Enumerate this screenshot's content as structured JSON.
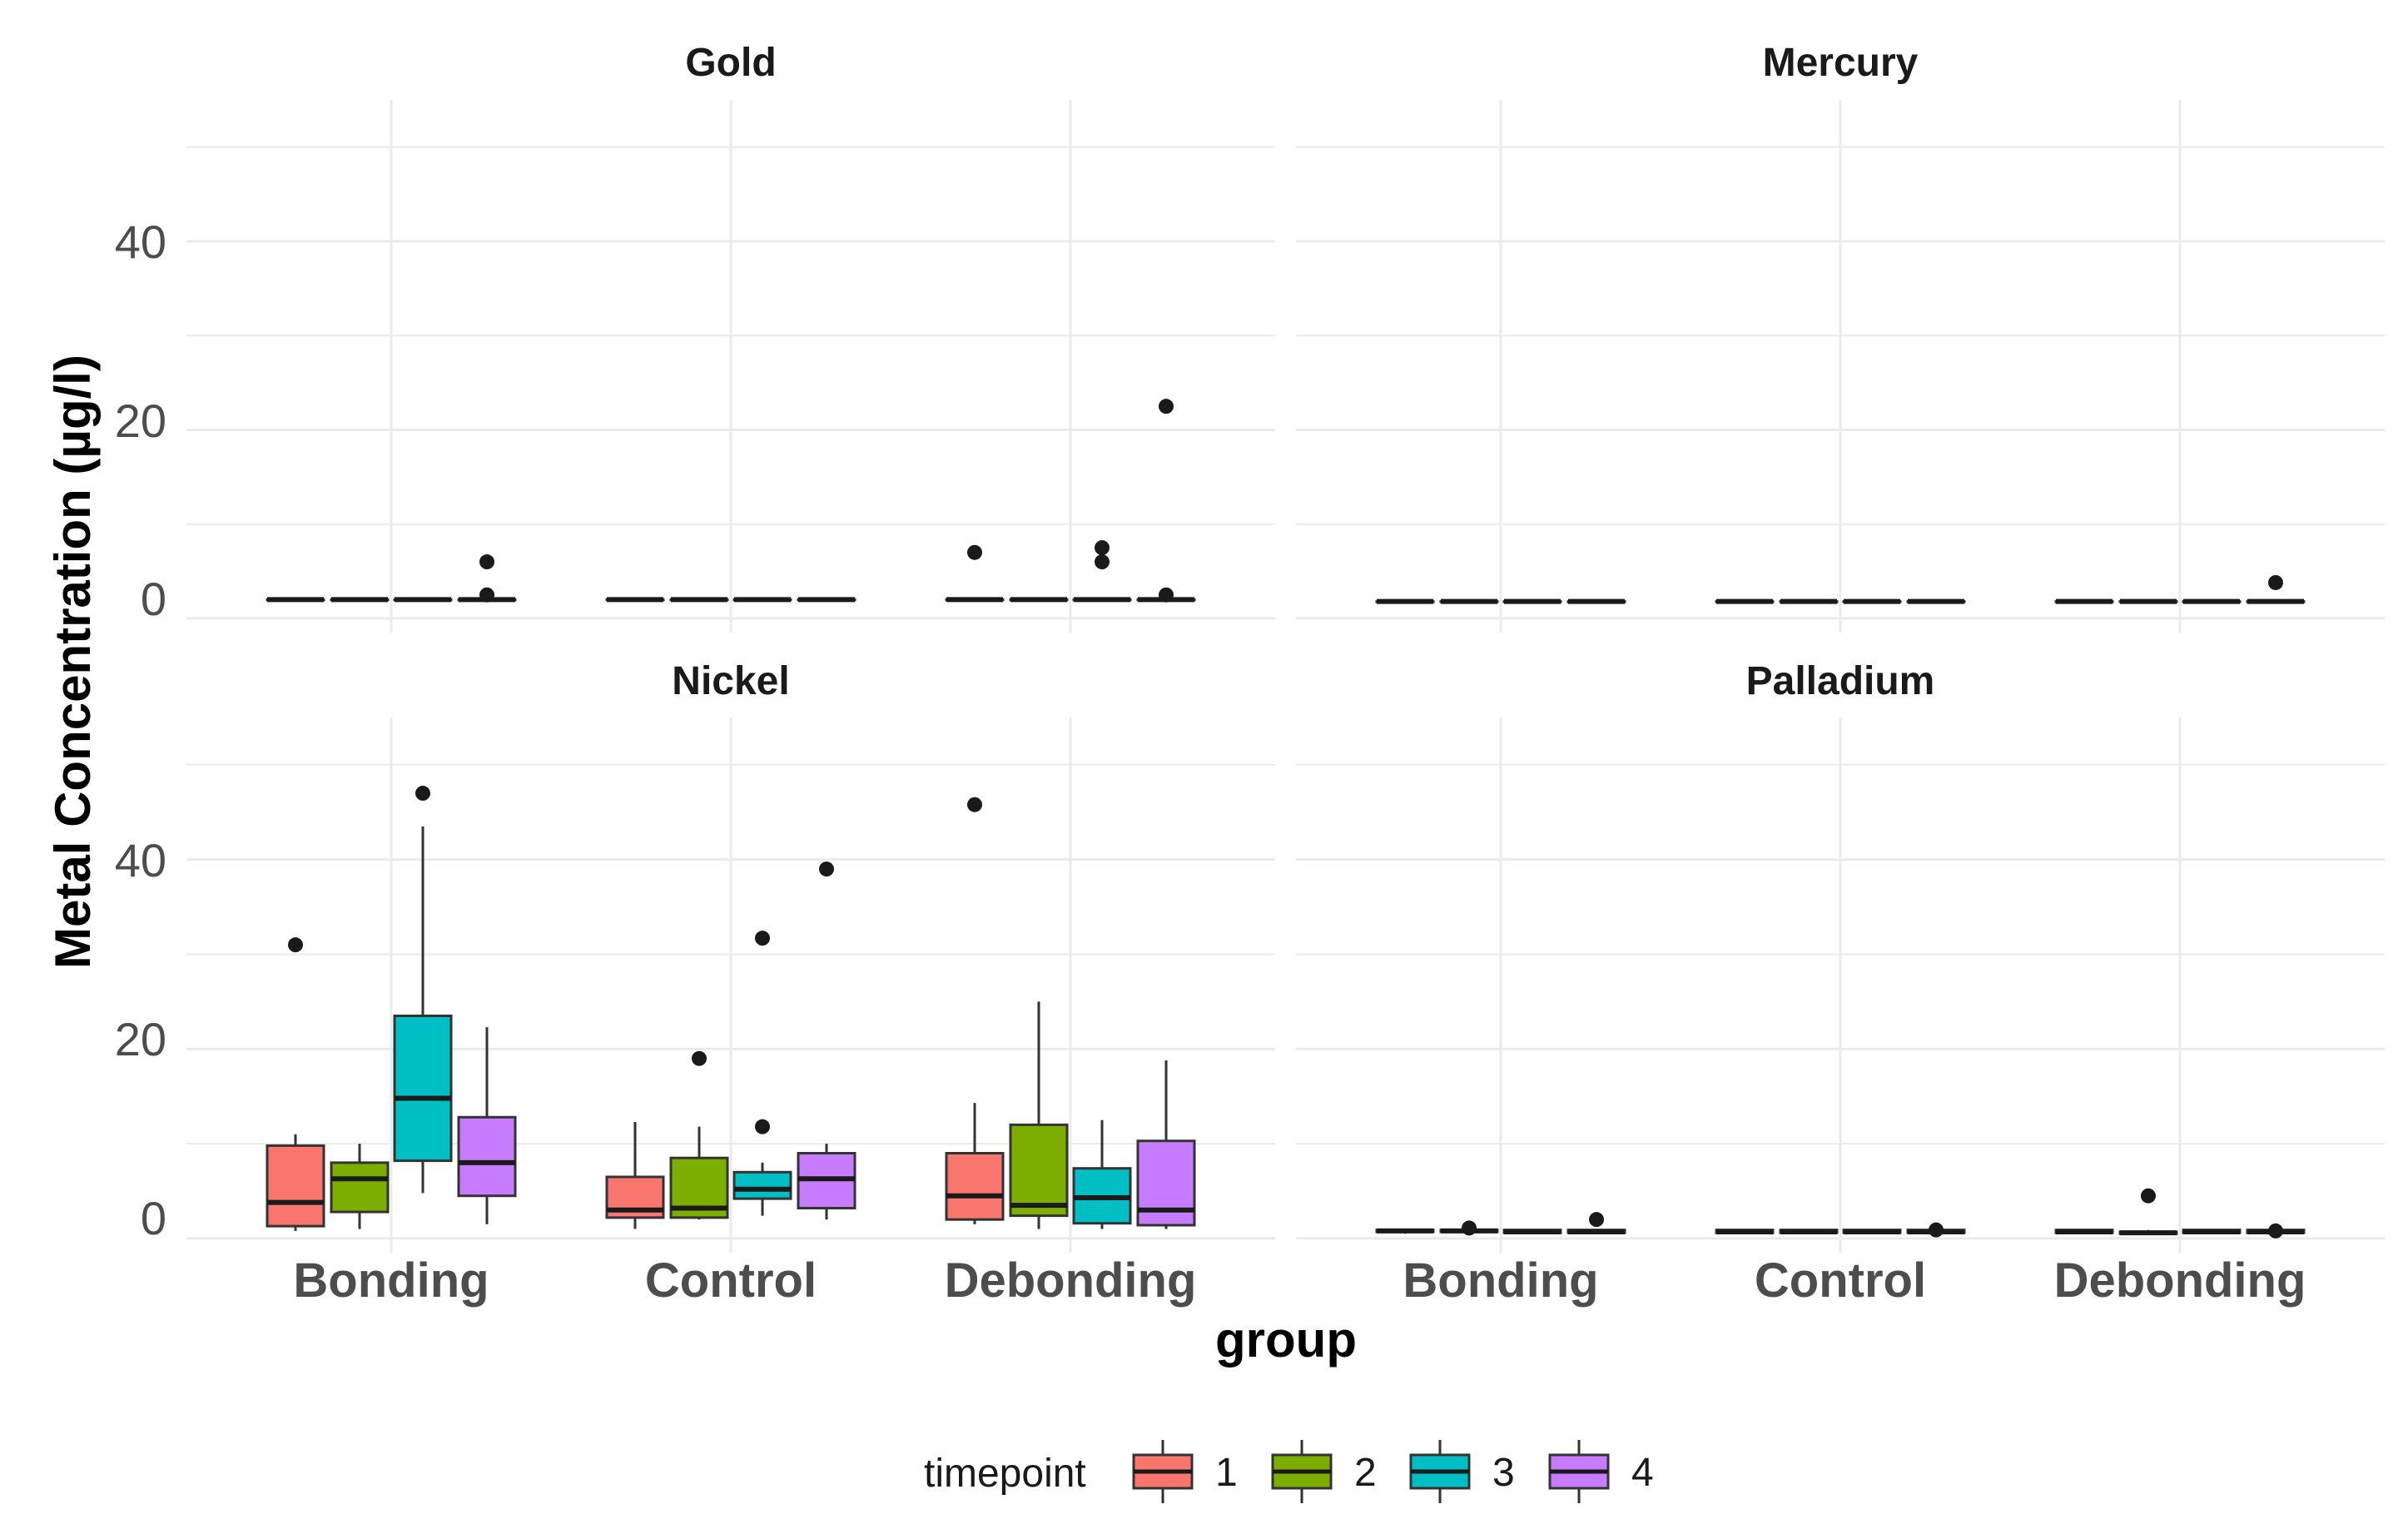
{
  "chart_data": {
    "type": "boxplot",
    "facets": [
      "Gold",
      "Mercury",
      "Nickel",
      "Palladium"
    ],
    "xlabel": "group",
    "ylabel": "Metal Concentration (µg/l)",
    "categories": [
      "Bonding",
      "Control",
      "Debonding"
    ],
    "y_ticks": [
      0,
      20,
      40
    ],
    "ylim": [
      -1.5,
      55
    ],
    "legend": {
      "title": "timepoint",
      "position": "bottom",
      "levels": [
        "1",
        "2",
        "3",
        "4"
      ]
    },
    "colors": {
      "1": "#F8766D",
      "2": "#7CAE00",
      "3": "#00BFC4",
      "4": "#C77CFF"
    },
    "boxes": {
      "Gold": {
        "Bonding": [
          {
            "q1": 2,
            "med": 2,
            "q3": 2,
            "lo": 2,
            "hi": 2,
            "out": []
          },
          {
            "q1": 2,
            "med": 2,
            "q3": 2,
            "lo": 2,
            "hi": 2,
            "out": []
          },
          {
            "q1": 2,
            "med": 2,
            "q3": 2,
            "lo": 2,
            "hi": 2,
            "out": []
          },
          {
            "q1": 2,
            "med": 2,
            "q3": 2,
            "lo": 2,
            "hi": 2,
            "out": [
              6,
              2.5
            ]
          }
        ],
        "Control": [
          {
            "q1": 2,
            "med": 2,
            "q3": 2,
            "lo": 2,
            "hi": 2,
            "out": []
          },
          {
            "q1": 2,
            "med": 2,
            "q3": 2,
            "lo": 2,
            "hi": 2,
            "out": []
          },
          {
            "q1": 2,
            "med": 2,
            "q3": 2,
            "lo": 2,
            "hi": 2,
            "out": []
          },
          {
            "q1": 2,
            "med": 2,
            "q3": 2,
            "lo": 2,
            "hi": 2,
            "out": []
          }
        ],
        "Debonding": [
          {
            "q1": 2,
            "med": 2,
            "q3": 2,
            "lo": 2,
            "hi": 2,
            "out": [
              7
            ]
          },
          {
            "q1": 2,
            "med": 2,
            "q3": 2,
            "lo": 2,
            "hi": 2,
            "out": []
          },
          {
            "q1": 2,
            "med": 2,
            "q3": 2,
            "lo": 2,
            "hi": 2,
            "out": [
              7.5,
              6
            ]
          },
          {
            "q1": 2,
            "med": 2,
            "q3": 2,
            "lo": 2,
            "hi": 2,
            "out": [
              22.5,
              2.5
            ]
          }
        ]
      },
      "Mercury": {
        "Bonding": [
          {
            "q1": 1.8,
            "med": 1.8,
            "q3": 1.8,
            "lo": 1.8,
            "hi": 1.8,
            "out": []
          },
          {
            "q1": 1.8,
            "med": 1.8,
            "q3": 1.8,
            "lo": 1.8,
            "hi": 1.8,
            "out": []
          },
          {
            "q1": 1.8,
            "med": 1.8,
            "q3": 1.8,
            "lo": 1.8,
            "hi": 1.8,
            "out": []
          },
          {
            "q1": 1.8,
            "med": 1.8,
            "q3": 1.8,
            "lo": 1.8,
            "hi": 1.8,
            "out": []
          }
        ],
        "Control": [
          {
            "q1": 1.8,
            "med": 1.8,
            "q3": 1.8,
            "lo": 1.8,
            "hi": 1.8,
            "out": []
          },
          {
            "q1": 1.8,
            "med": 1.8,
            "q3": 1.8,
            "lo": 1.8,
            "hi": 1.8,
            "out": []
          },
          {
            "q1": 1.8,
            "med": 1.8,
            "q3": 1.8,
            "lo": 1.8,
            "hi": 1.8,
            "out": []
          },
          {
            "q1": 1.8,
            "med": 1.8,
            "q3": 1.8,
            "lo": 1.8,
            "hi": 1.8,
            "out": []
          }
        ],
        "Debonding": [
          {
            "q1": 1.8,
            "med": 1.8,
            "q3": 1.8,
            "lo": 1.8,
            "hi": 1.8,
            "out": []
          },
          {
            "q1": 1.8,
            "med": 1.8,
            "q3": 1.8,
            "lo": 1.8,
            "hi": 1.8,
            "out": []
          },
          {
            "q1": 1.8,
            "med": 1.8,
            "q3": 1.8,
            "lo": 1.8,
            "hi": 1.8,
            "out": []
          },
          {
            "q1": 1.8,
            "med": 1.8,
            "q3": 1.8,
            "lo": 1.8,
            "hi": 1.8,
            "out": [
              3.8
            ]
          }
        ]
      },
      "Nickel": {
        "Bonding": [
          {
            "q1": 1.3,
            "med": 3.8,
            "q3": 9.8,
            "lo": 0.8,
            "hi": 11,
            "out": [
              31
            ]
          },
          {
            "q1": 2.8,
            "med": 6.3,
            "q3": 8,
            "lo": 1,
            "hi": 10,
            "out": []
          },
          {
            "q1": 8.2,
            "med": 14.8,
            "q3": 23.5,
            "lo": 4.8,
            "hi": 43.5,
            "out": [
              47
            ]
          },
          {
            "q1": 4.5,
            "med": 8,
            "q3": 12.8,
            "lo": 1.5,
            "hi": 22.3,
            "out": []
          }
        ],
        "Control": [
          {
            "q1": 2.2,
            "med": 3,
            "q3": 6.5,
            "lo": 1,
            "hi": 12.3,
            "out": []
          },
          {
            "q1": 2.2,
            "med": 3.2,
            "q3": 8.5,
            "lo": 2,
            "hi": 11.8,
            "out": [
              19
            ]
          },
          {
            "q1": 4.2,
            "med": 5.2,
            "q3": 7,
            "lo": 2.4,
            "hi": 8,
            "out": [
              11.8,
              31.7
            ]
          },
          {
            "q1": 3.2,
            "med": 6.3,
            "q3": 9,
            "lo": 2,
            "hi": 10,
            "out": [
              39
            ]
          }
        ],
        "Debonding": [
          {
            "q1": 2,
            "med": 4.5,
            "q3": 9,
            "lo": 1.5,
            "hi": 14.3,
            "out": [
              45.8
            ]
          },
          {
            "q1": 2.4,
            "med": 3.5,
            "q3": 12,
            "lo": 1,
            "hi": 25,
            "out": []
          },
          {
            "q1": 1.6,
            "med": 4.3,
            "q3": 7.4,
            "lo": 1,
            "hi": 12.5,
            "out": []
          },
          {
            "q1": 1.4,
            "med": 3,
            "q3": 10.3,
            "lo": 1,
            "hi": 18.8,
            "out": []
          }
        ]
      },
      "Palladium": {
        "Bonding": [
          {
            "q1": 0.7,
            "med": 0.8,
            "q3": 0.9,
            "lo": 0.5,
            "hi": 1,
            "out": []
          },
          {
            "q1": 0.7,
            "med": 0.8,
            "q3": 0.9,
            "lo": 0.5,
            "hi": 1,
            "out": [
              1.1
            ]
          },
          {
            "q1": 0.6,
            "med": 0.7,
            "q3": 0.9,
            "lo": 0.5,
            "hi": 1,
            "out": []
          },
          {
            "q1": 0.6,
            "med": 0.7,
            "q3": 0.9,
            "lo": 0.5,
            "hi": 1,
            "out": [
              2
            ]
          }
        ],
        "Control": [
          {
            "q1": 0.6,
            "med": 0.7,
            "q3": 0.9,
            "lo": 0.5,
            "hi": 1,
            "out": []
          },
          {
            "q1": 0.6,
            "med": 0.7,
            "q3": 0.9,
            "lo": 0.5,
            "hi": 1,
            "out": []
          },
          {
            "q1": 0.6,
            "med": 0.7,
            "q3": 0.9,
            "lo": 0.5,
            "hi": 1,
            "out": []
          },
          {
            "q1": 0.6,
            "med": 0.7,
            "q3": 0.9,
            "lo": 0.5,
            "hi": 1,
            "out": [
              0.9
            ]
          }
        ],
        "Debonding": [
          {
            "q1": 0.6,
            "med": 0.7,
            "q3": 0.9,
            "lo": 0.5,
            "hi": 1,
            "out": []
          },
          {
            "q1": 0.5,
            "med": 0.6,
            "q3": 0.7,
            "lo": 0.4,
            "hi": 0.9,
            "out": [
              4.5
            ]
          },
          {
            "q1": 0.6,
            "med": 0.7,
            "q3": 0.9,
            "lo": 0.5,
            "hi": 1,
            "out": []
          },
          {
            "q1": 0.6,
            "med": 0.7,
            "q3": 0.9,
            "lo": 0.5,
            "hi": 1,
            "out": [
              0.8
            ]
          }
        ]
      }
    }
  }
}
